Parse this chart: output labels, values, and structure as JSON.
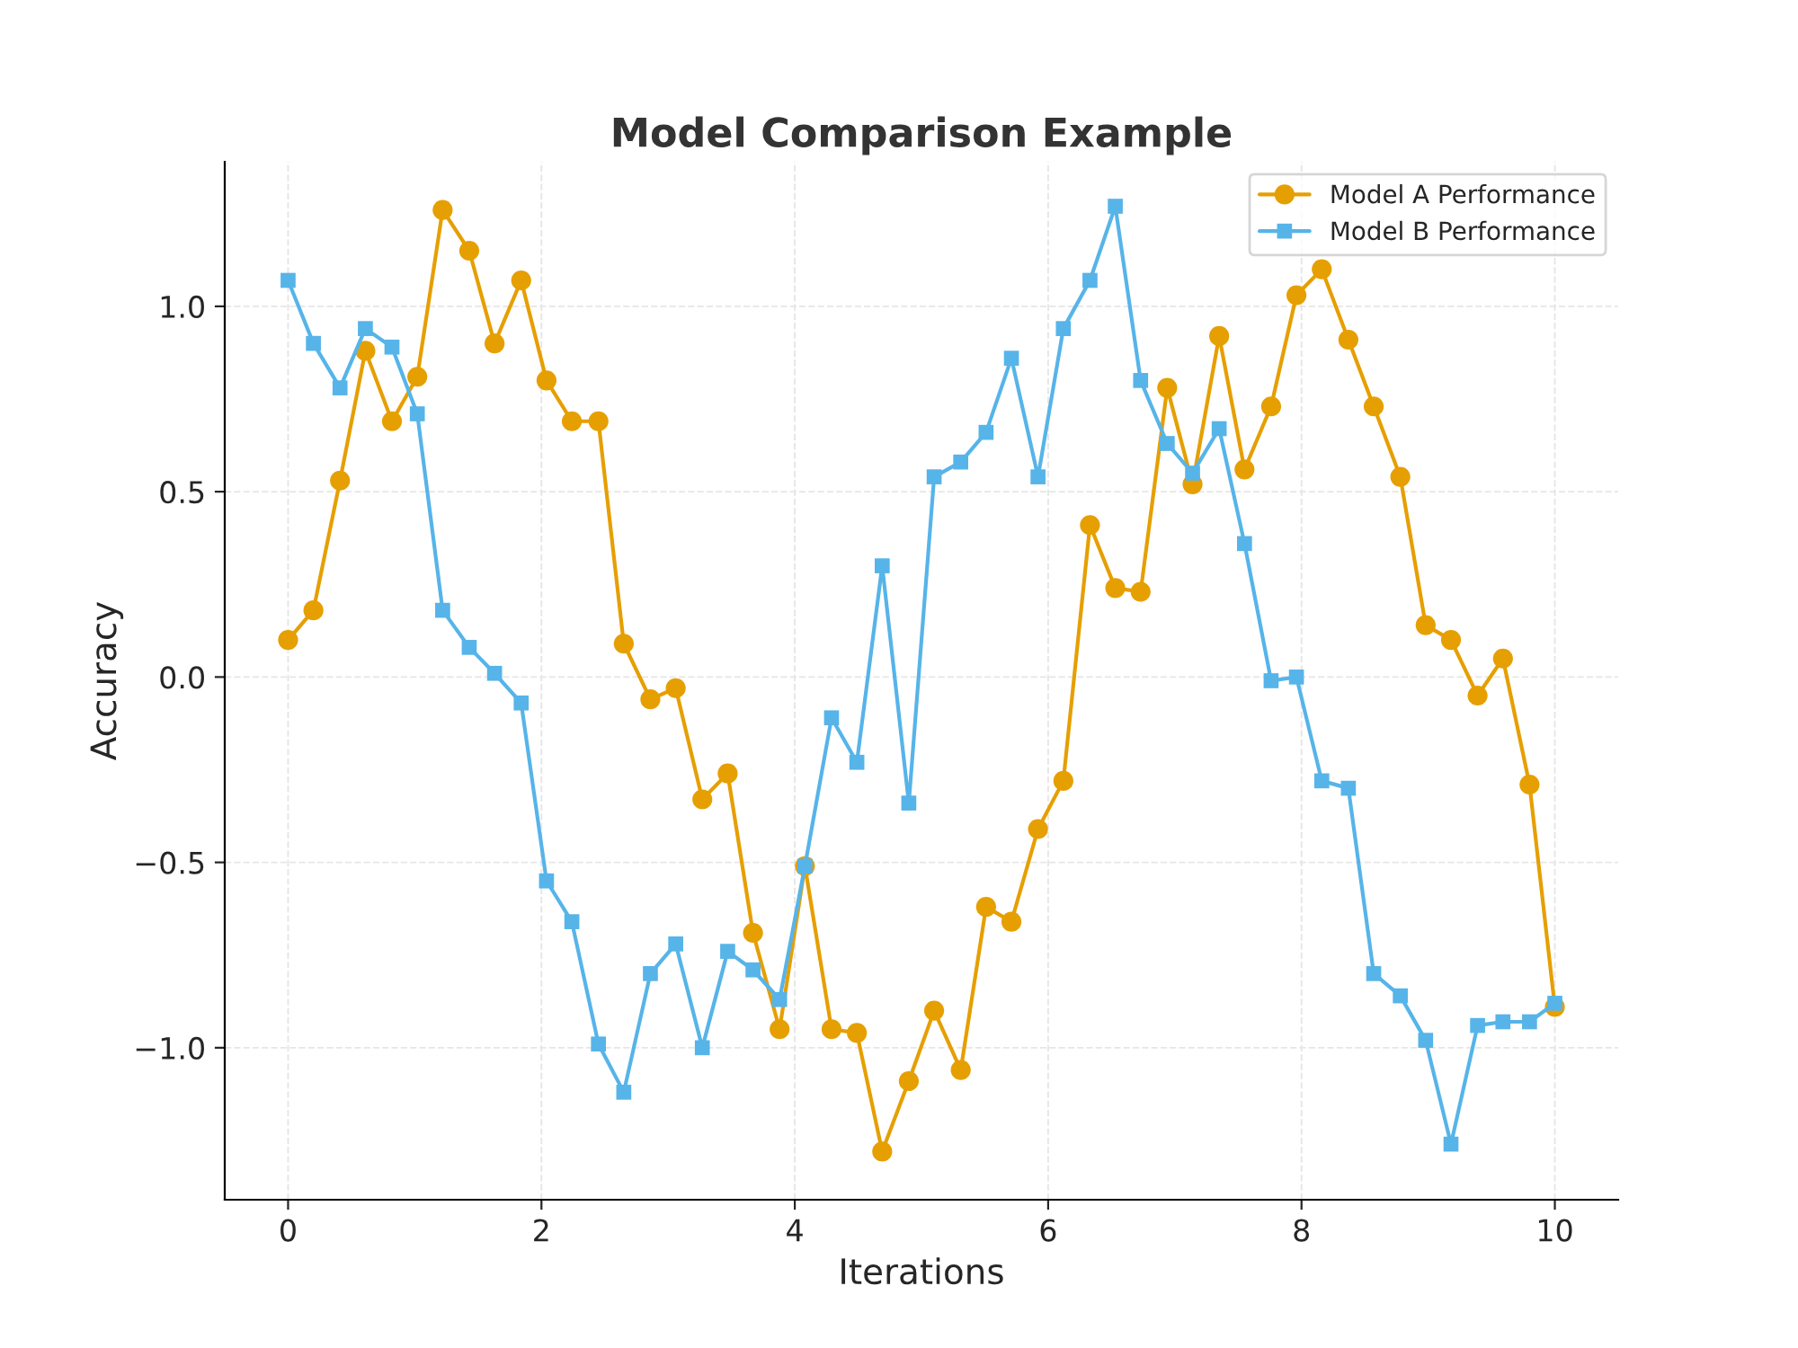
{
  "chart_data": {
    "type": "line",
    "title": "Model Comparison Example",
    "xlabel": "Iterations",
    "ylabel": "Accuracy",
    "x": [
      0,
      0.2,
      0.41,
      0.61,
      0.82,
      1.02,
      1.22,
      1.43,
      1.63,
      1.84,
      2.04,
      2.24,
      2.45,
      2.65,
      2.86,
      3.06,
      3.27,
      3.47,
      3.67,
      3.88,
      4.08,
      4.29,
      4.49,
      4.69,
      4.9,
      5.1,
      5.31,
      5.51,
      5.71,
      5.92,
      6.12,
      6.33,
      6.53,
      6.73,
      6.94,
      7.14,
      7.35,
      7.55,
      7.76,
      7.96,
      8.16,
      8.37,
      8.57,
      8.78,
      8.98,
      9.18,
      9.39,
      9.59,
      9.8,
      10
    ],
    "series": [
      {
        "name": "Model A Performance",
        "color": "#e69f00",
        "marker": "circle",
        "values": [
          0.1,
          0.18,
          0.53,
          0.88,
          0.69,
          0.81,
          1.26,
          1.15,
          0.9,
          1.07,
          0.8,
          0.69,
          0.69,
          0.09,
          -0.06,
          -0.03,
          -0.33,
          -0.26,
          -0.69,
          -0.95,
          -0.51,
          -0.95,
          -0.96,
          -1.28,
          -1.09,
          -0.9,
          -1.06,
          -0.62,
          -0.66,
          -0.41,
          -0.28,
          0.41,
          0.24,
          0.23,
          0.78,
          0.52,
          0.92,
          0.56,
          0.73,
          1.03,
          1.1,
          0.91,
          0.73,
          0.54,
          0.14,
          0.1,
          -0.05,
          0.05,
          -0.29,
          -0.89
        ]
      },
      {
        "name": "Model B Performance",
        "color": "#56b4e9",
        "marker": "square",
        "values": [
          1.07,
          0.9,
          0.78,
          0.94,
          0.89,
          0.71,
          0.18,
          0.08,
          0.01,
          -0.07,
          -0.55,
          -0.66,
          -0.99,
          -1.12,
          -0.8,
          -0.72,
          -1.0,
          -0.74,
          -0.79,
          -0.87,
          -0.51,
          -0.11,
          -0.23,
          0.3,
          -0.34,
          0.54,
          0.58,
          0.66,
          0.86,
          0.54,
          0.94,
          1.07,
          1.27,
          0.8,
          0.63,
          0.55,
          0.67,
          0.36,
          -0.01,
          0.0,
          -0.28,
          -0.3,
          -0.8,
          -0.86,
          -0.98,
          -1.26,
          -0.94,
          -0.93,
          -0.93,
          -0.88
        ]
      }
    ],
    "xlim": [
      -0.5,
      10.5
    ],
    "ylim": [
      -1.41,
      1.39
    ],
    "xticks": [
      0,
      2,
      4,
      6,
      8,
      10
    ],
    "yticks": [
      {
        "value": -1.0,
        "label": "−1.0"
      },
      {
        "value": -0.5,
        "label": "−0.5"
      },
      {
        "value": 0.0,
        "label": "0.0"
      },
      {
        "value": 0.5,
        "label": "0.5"
      },
      {
        "value": 1.0,
        "label": "1.0"
      }
    ],
    "grid": true,
    "legend": "top right",
    "line_style": "solid"
  }
}
